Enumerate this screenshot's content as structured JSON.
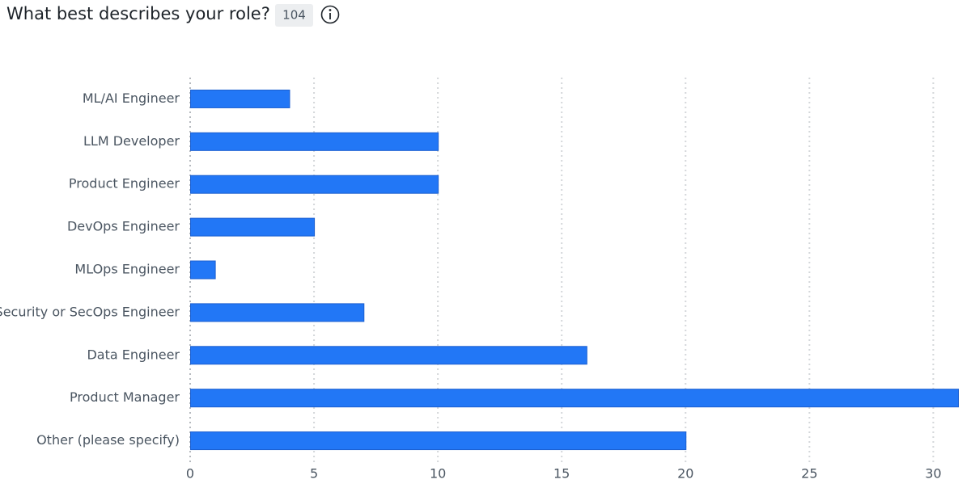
{
  "chart_data": {
    "type": "bar",
    "orientation": "horizontal",
    "title": "What best describes your role?",
    "response_count": 104,
    "categories": [
      "ML/AI Engineer",
      "LLM Developer",
      "Product Engineer",
      "DevOps Engineer",
      "MLOps Engineer",
      "Security or SecOps Engineer",
      "Data Engineer",
      "Product Manager",
      "Other (please specify)"
    ],
    "values": [
      4,
      10,
      10,
      5,
      1,
      7,
      16,
      31,
      20
    ],
    "color": "#2277f6",
    "xlim": [
      0,
      31
    ],
    "xticks": [
      0,
      5,
      10,
      15,
      20,
      25,
      30
    ],
    "grid": true
  }
}
